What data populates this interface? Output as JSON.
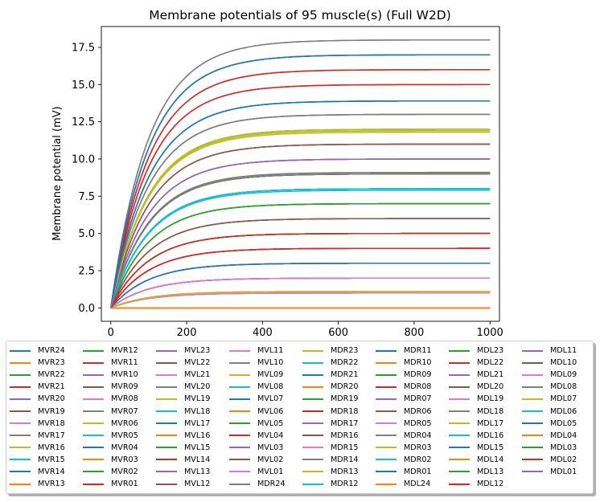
{
  "chart_data": {
    "type": "line",
    "title": "Membrane potentials of 95 muscle(s) (Full W2D)",
    "xlabel": "",
    "ylabel": "Membrane potential (mV)",
    "xlim": [
      -25,
      1025
    ],
    "ylim": [
      -0.9,
      18.9
    ],
    "xticks": [
      0,
      200,
      400,
      600,
      800,
      1000
    ],
    "yticks": [
      0.0,
      2.5,
      5.0,
      7.5,
      10.0,
      12.5,
      15.0,
      17.5
    ],
    "ytick_labels": [
      "0.0",
      "2.5",
      "5.0",
      "7.5",
      "10.0",
      "12.5",
      "15.0",
      "17.5"
    ],
    "curve": "exponential rise from 0 at t=0 to plateau, time constant ~100",
    "time_constant": 100,
    "grid": false,
    "legend_position": "below plot, 8 columns",
    "series": [
      {
        "name": "MVR24",
        "color": "#1f77b4",
        "final": 17.0
      },
      {
        "name": "MVR23",
        "color": "#ff7f0e",
        "final": 0.0
      },
      {
        "name": "MVR22",
        "color": "#2ca02c",
        "final": 9.0
      },
      {
        "name": "MVR21",
        "color": "#d62728",
        "final": 16.0
      },
      {
        "name": "MVR20",
        "color": "#9467bd",
        "final": 10.0
      },
      {
        "name": "MVR19",
        "color": "#8c564b",
        "final": 11.0
      },
      {
        "name": "MVR18",
        "color": "#e377c2",
        "final": 1.0
      },
      {
        "name": "MVR17",
        "color": "#7f7f7f",
        "final": 13.0
      },
      {
        "name": "MVR16",
        "color": "#bcbd22",
        "final": 1.1
      },
      {
        "name": "MVR15",
        "color": "#17becf",
        "final": 8.0
      },
      {
        "name": "MVR14",
        "color": "#1f77b4",
        "final": 2.0
      },
      {
        "name": "MVR13",
        "color": "#ff7f0e",
        "final": 0.0
      },
      {
        "name": "MVR12",
        "color": "#2ca02c",
        "final": 7.0
      },
      {
        "name": "MVR11",
        "color": "#d62728",
        "final": 15.0
      },
      {
        "name": "MVR10",
        "color": "#9467bd",
        "final": 2.0
      },
      {
        "name": "MVR09",
        "color": "#8c564b",
        "final": 6.0
      },
      {
        "name": "MVR08",
        "color": "#e377c2",
        "final": 8.0
      },
      {
        "name": "MVR07",
        "color": "#7f7f7f",
        "final": 18.0
      },
      {
        "name": "MVR06",
        "color": "#bcbd22",
        "final": 12.0
      },
      {
        "name": "MVR05",
        "color": "#17becf",
        "final": 8.0
      },
      {
        "name": "MVR04",
        "color": "#1f77b4",
        "final": 13.9
      },
      {
        "name": "MVR03",
        "color": "#ff7f0e",
        "final": 0.0
      },
      {
        "name": "MVR02",
        "color": "#2ca02c",
        "final": 5.0
      },
      {
        "name": "MVR01",
        "color": "#d62728",
        "final": 4.0
      },
      {
        "name": "MVL23",
        "color": "#9467bd",
        "final": 3.0
      },
      {
        "name": "MVL22",
        "color": "#8c564b",
        "final": 11.0
      },
      {
        "name": "MVL21",
        "color": "#e377c2",
        "final": 1.0
      },
      {
        "name": "MVL20",
        "color": "#7f7f7f",
        "final": 9.1
      },
      {
        "name": "MVL19",
        "color": "#bcbd22",
        "final": 11.9
      },
      {
        "name": "MVL18",
        "color": "#17becf",
        "final": 8.0
      },
      {
        "name": "MVL17",
        "color": "#1f77b4",
        "final": 17.0
      },
      {
        "name": "MVL16",
        "color": "#ff7f0e",
        "final": 0.0
      },
      {
        "name": "MVL15",
        "color": "#2ca02c",
        "final": 7.0
      },
      {
        "name": "MVL14",
        "color": "#d62728",
        "final": 15.0
      },
      {
        "name": "MVL13",
        "color": "#9467bd",
        "final": 3.0
      },
      {
        "name": "MVL12",
        "color": "#8c564b",
        "final": 6.0
      },
      {
        "name": "MVL11",
        "color": "#e377c2",
        "final": 1.0
      },
      {
        "name": "MVL10",
        "color": "#7f7f7f",
        "final": 13.0
      },
      {
        "name": "MVL09",
        "color": "#bcbd22",
        "final": 11.8
      },
      {
        "name": "MVL08",
        "color": "#17becf",
        "final": 7.9
      },
      {
        "name": "MVL07",
        "color": "#1f77b4",
        "final": 3.0
      },
      {
        "name": "MVL06",
        "color": "#ff7f0e",
        "final": 0.0
      },
      {
        "name": "MVL05",
        "color": "#2ca02c",
        "final": 5.0
      },
      {
        "name": "MVL04",
        "color": "#d62728",
        "final": 4.0
      },
      {
        "name": "MVL03",
        "color": "#9467bd",
        "final": 12.0
      },
      {
        "name": "MVL02",
        "color": "#8c564b",
        "final": 9.0
      },
      {
        "name": "MVL01",
        "color": "#e377c2",
        "final": 1.0
      },
      {
        "name": "MDR24",
        "color": "#7f7f7f",
        "final": 9.0
      },
      {
        "name": "MDR23",
        "color": "#bcbd22",
        "final": 1.1
      },
      {
        "name": "MDR22",
        "color": "#17becf",
        "final": 8.0
      },
      {
        "name": "MDR21",
        "color": "#1f77b4",
        "final": 13.9
      },
      {
        "name": "MDR20",
        "color": "#ff7f0e",
        "final": 0.0
      },
      {
        "name": "MDR19",
        "color": "#2ca02c",
        "final": 9.0
      },
      {
        "name": "MDR18",
        "color": "#d62728",
        "final": 16.0
      },
      {
        "name": "MDR17",
        "color": "#9467bd",
        "final": 10.0
      },
      {
        "name": "MDR16",
        "color": "#8c564b",
        "final": 5.0
      },
      {
        "name": "MDR15",
        "color": "#e377c2",
        "final": 2.0
      },
      {
        "name": "MDR14",
        "color": "#7f7f7f",
        "final": 18.0
      },
      {
        "name": "MDR13",
        "color": "#bcbd22",
        "final": 12.0
      },
      {
        "name": "MDR12",
        "color": "#17becf",
        "final": 8.0
      },
      {
        "name": "MDR11",
        "color": "#1f77b4",
        "final": 2.0
      },
      {
        "name": "MDR10",
        "color": "#ff7f0e",
        "final": 0.0
      },
      {
        "name": "MDR09",
        "color": "#2ca02c",
        "final": 7.0
      },
      {
        "name": "MDR08",
        "color": "#d62728",
        "final": 5.0
      },
      {
        "name": "MDR07",
        "color": "#9467bd",
        "final": 2.0
      },
      {
        "name": "MDR06",
        "color": "#8c564b",
        "final": 6.0
      },
      {
        "name": "MDR05",
        "color": "#e377c2",
        "final": 8.0
      },
      {
        "name": "MDR04",
        "color": "#7f7f7f",
        "final": 9.1
      },
      {
        "name": "MDR03",
        "color": "#bcbd22",
        "final": 1.1
      },
      {
        "name": "MDR02",
        "color": "#17becf",
        "final": 8.0
      },
      {
        "name": "MDR01",
        "color": "#1f77b4",
        "final": 17.0
      },
      {
        "name": "MDL24",
        "color": "#ff7f0e",
        "final": 0.0
      },
      {
        "name": "MDL23",
        "color": "#2ca02c",
        "final": 5.0
      },
      {
        "name": "MDL22",
        "color": "#d62728",
        "final": 4.0
      },
      {
        "name": "MDL21",
        "color": "#9467bd",
        "final": 10.0
      },
      {
        "name": "MDL20",
        "color": "#8c564b",
        "final": 11.0
      },
      {
        "name": "MDL19",
        "color": "#e377c2",
        "final": 2.0
      },
      {
        "name": "MDL18",
        "color": "#7f7f7f",
        "final": 13.0
      },
      {
        "name": "MDL17",
        "color": "#bcbd22",
        "final": 11.9
      },
      {
        "name": "MDL16",
        "color": "#17becf",
        "final": 8.0
      },
      {
        "name": "MDL15",
        "color": "#1f77b4",
        "final": 13.9
      },
      {
        "name": "MDL14",
        "color": "#ff7f0e",
        "final": 0.0
      },
      {
        "name": "MDL13",
        "color": "#2ca02c",
        "final": 9.0
      },
      {
        "name": "MDL12",
        "color": "#d62728",
        "final": 4.0
      },
      {
        "name": "MDL11",
        "color": "#9467bd",
        "final": 3.0
      },
      {
        "name": "MDL10",
        "color": "#8c564b",
        "final": 9.0
      },
      {
        "name": "MDL09",
        "color": "#e377c2",
        "final": 1.0
      },
      {
        "name": "MDL08",
        "color": "#7f7f7f",
        "final": 9.0
      },
      {
        "name": "MDL07",
        "color": "#bcbd22",
        "final": 1.1
      },
      {
        "name": "MDL06",
        "color": "#17becf",
        "final": 8.0
      },
      {
        "name": "MDL05",
        "color": "#1f77b4",
        "final": 3.0
      },
      {
        "name": "MDL04",
        "color": "#ff7f0e",
        "final": 0.0
      },
      {
        "name": "MDL03",
        "color": "#2ca02c",
        "final": 7.0
      },
      {
        "name": "MDL02",
        "color": "#d62728",
        "final": 5.0
      },
      {
        "name": "MDL01",
        "color": "#9467bd",
        "final": 10.0
      }
    ]
  }
}
